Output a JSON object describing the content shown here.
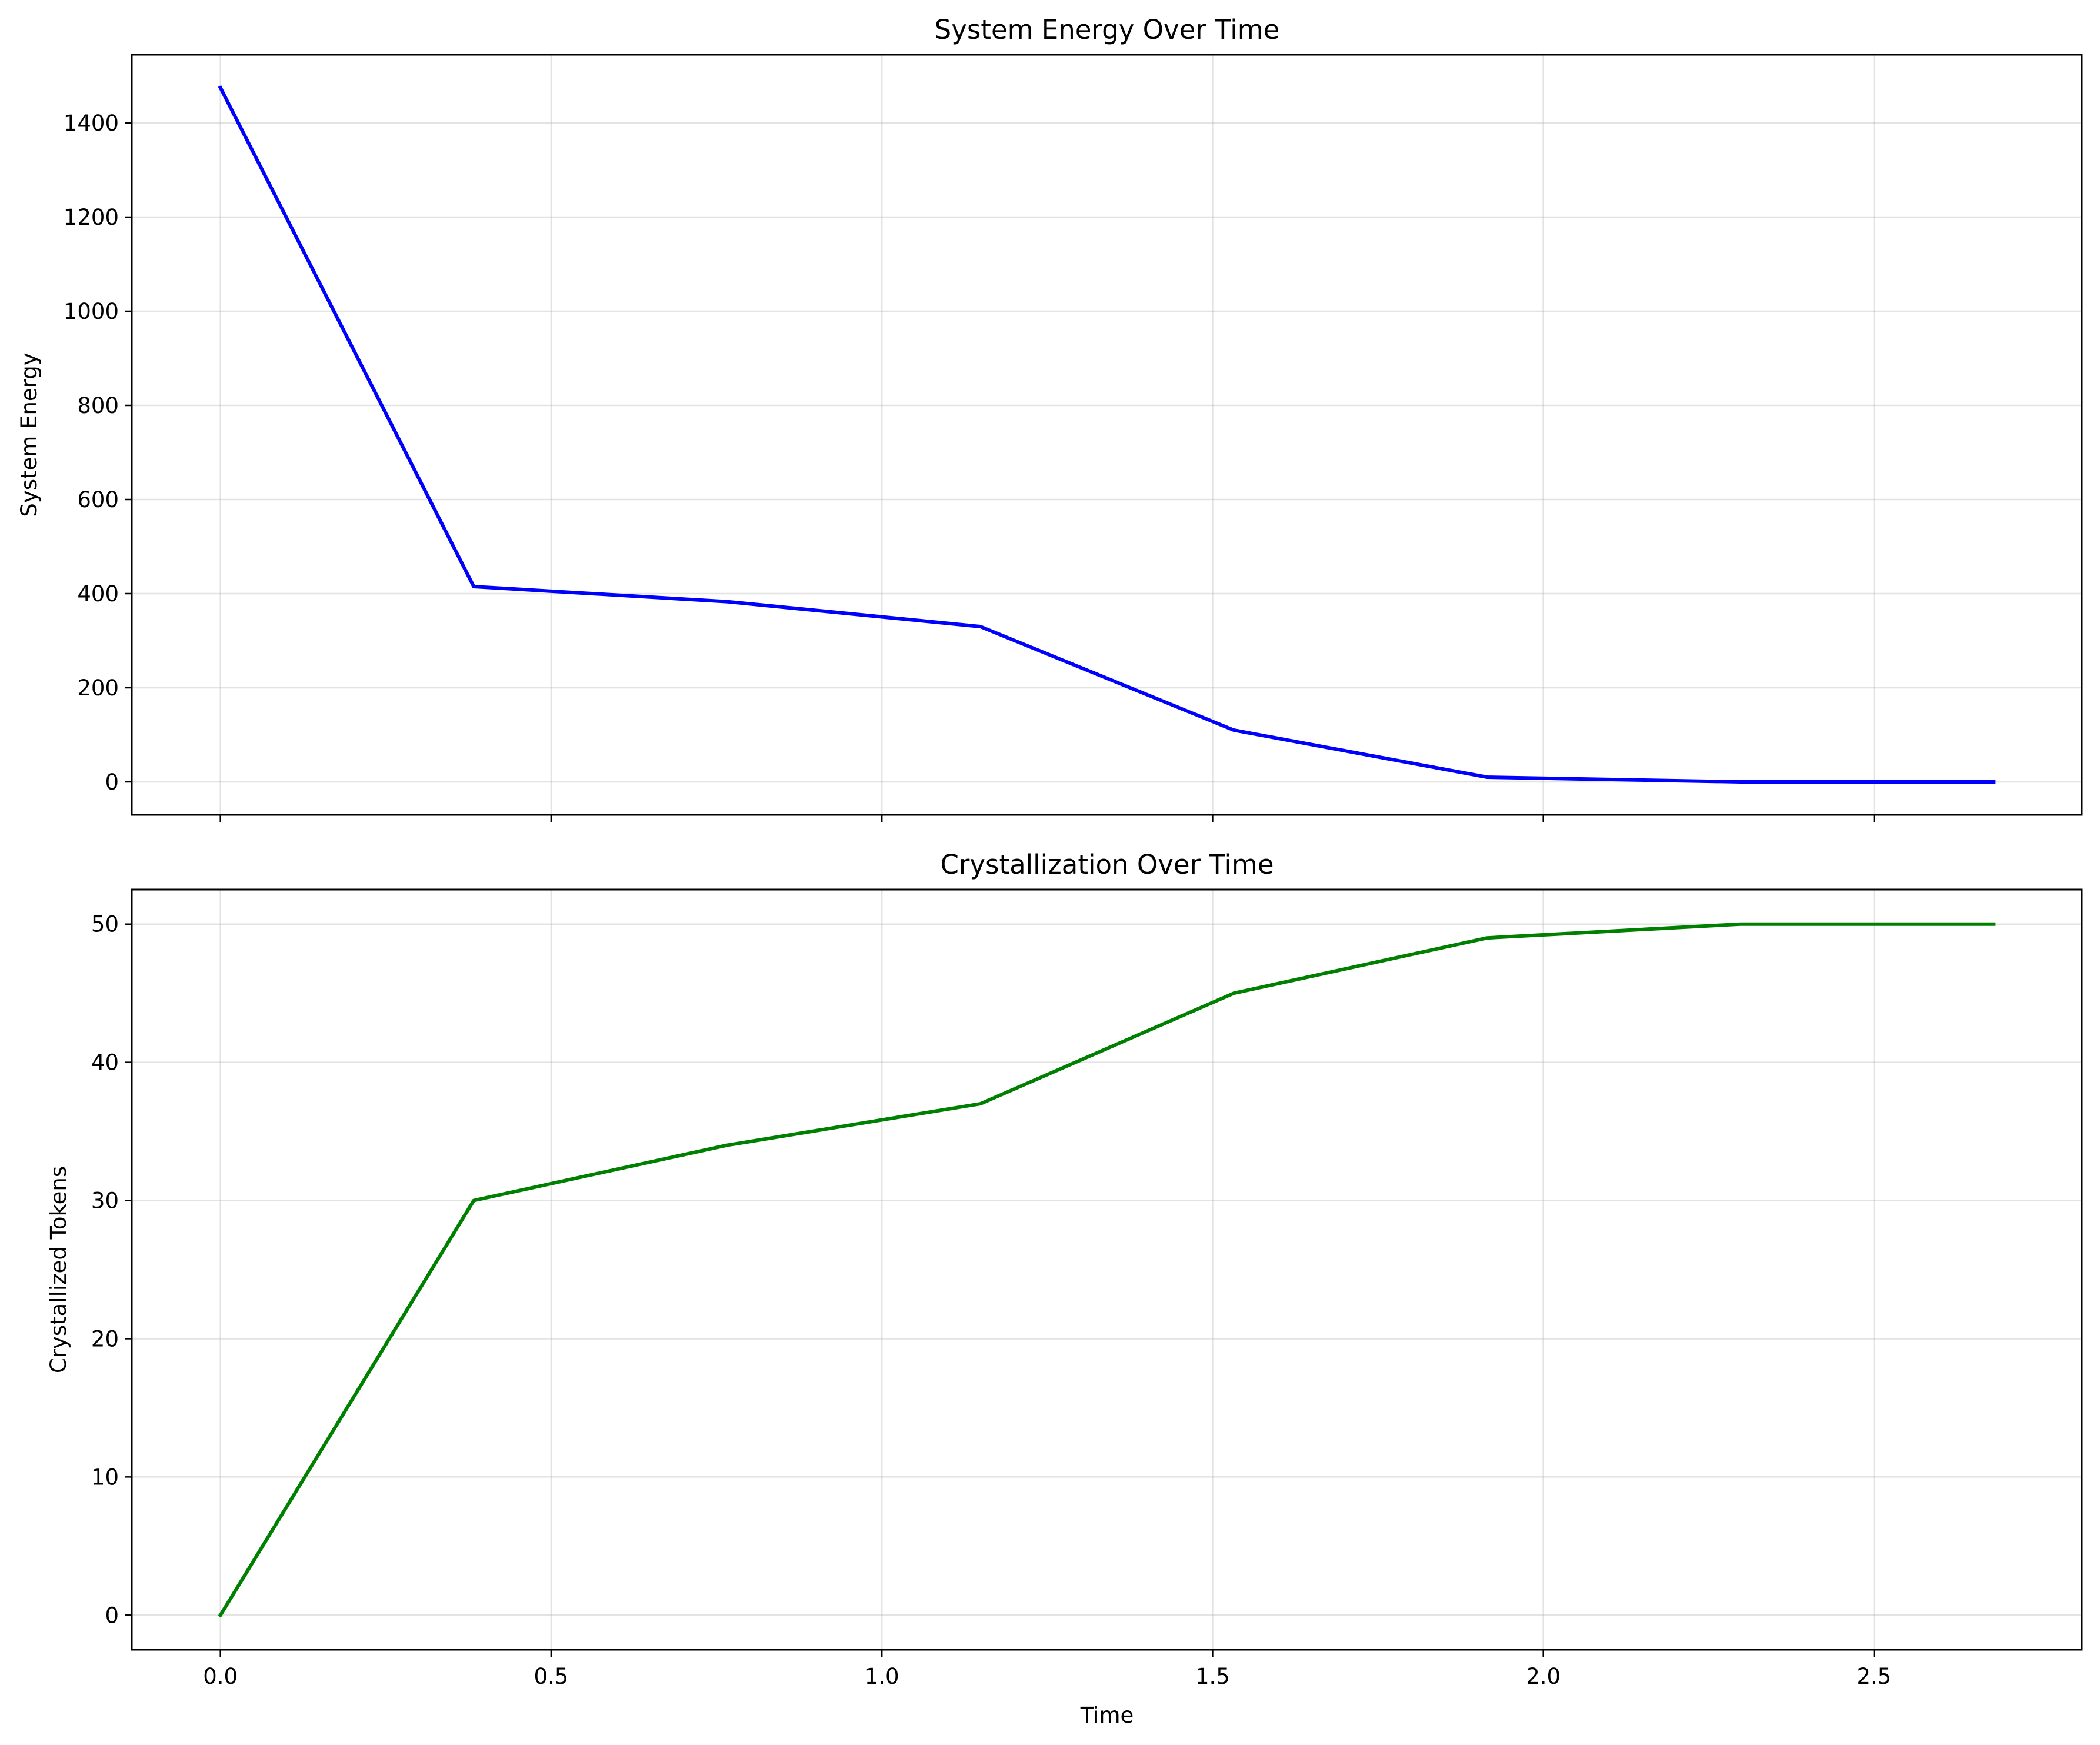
{
  "chart_data": [
    {
      "type": "line",
      "title": "System Energy Over Time",
      "xlabel": "",
      "ylabel": "System Energy",
      "xlim": [
        -0.134,
        2.814
      ],
      "ylim": [
        -70,
        1545
      ],
      "xticks": [
        0.0,
        0.5,
        1.0,
        1.5,
        2.0,
        2.5
      ],
      "xtick_labels": [],
      "yticks": [
        0,
        200,
        400,
        600,
        800,
        1000,
        1200,
        1400
      ],
      "ytick_labels": [
        "0",
        "200",
        "400",
        "600",
        "800",
        "1000",
        "1200",
        "1400"
      ],
      "grid": true,
      "series": [
        {
          "color": "#0000ff",
          "x": [
            0.0,
            0.383,
            0.766,
            1.149,
            1.532,
            1.915,
            2.298,
            2.681
          ],
          "y": [
            1475,
            415,
            383,
            330,
            110,
            10,
            0,
            0
          ]
        }
      ]
    },
    {
      "type": "line",
      "title": "Crystallization Over Time",
      "xlabel": "Time",
      "ylabel": "Crystallized Tokens",
      "xlim": [
        -0.134,
        2.814
      ],
      "ylim": [
        -2.5,
        52.5
      ],
      "xticks": [
        0.0,
        0.5,
        1.0,
        1.5,
        2.0,
        2.5
      ],
      "xtick_labels": [
        "0.0",
        "0.5",
        "1.0",
        "1.5",
        "2.0",
        "2.5"
      ],
      "yticks": [
        0,
        10,
        20,
        30,
        40,
        50
      ],
      "ytick_labels": [
        "0",
        "10",
        "20",
        "30",
        "40",
        "50"
      ],
      "grid": true,
      "series": [
        {
          "color": "#008000",
          "x": [
            0.0,
            0.383,
            0.766,
            1.149,
            1.532,
            1.915,
            2.298,
            2.681
          ],
          "y": [
            0,
            30,
            34,
            37,
            45,
            49,
            50,
            50
          ]
        }
      ]
    }
  ]
}
